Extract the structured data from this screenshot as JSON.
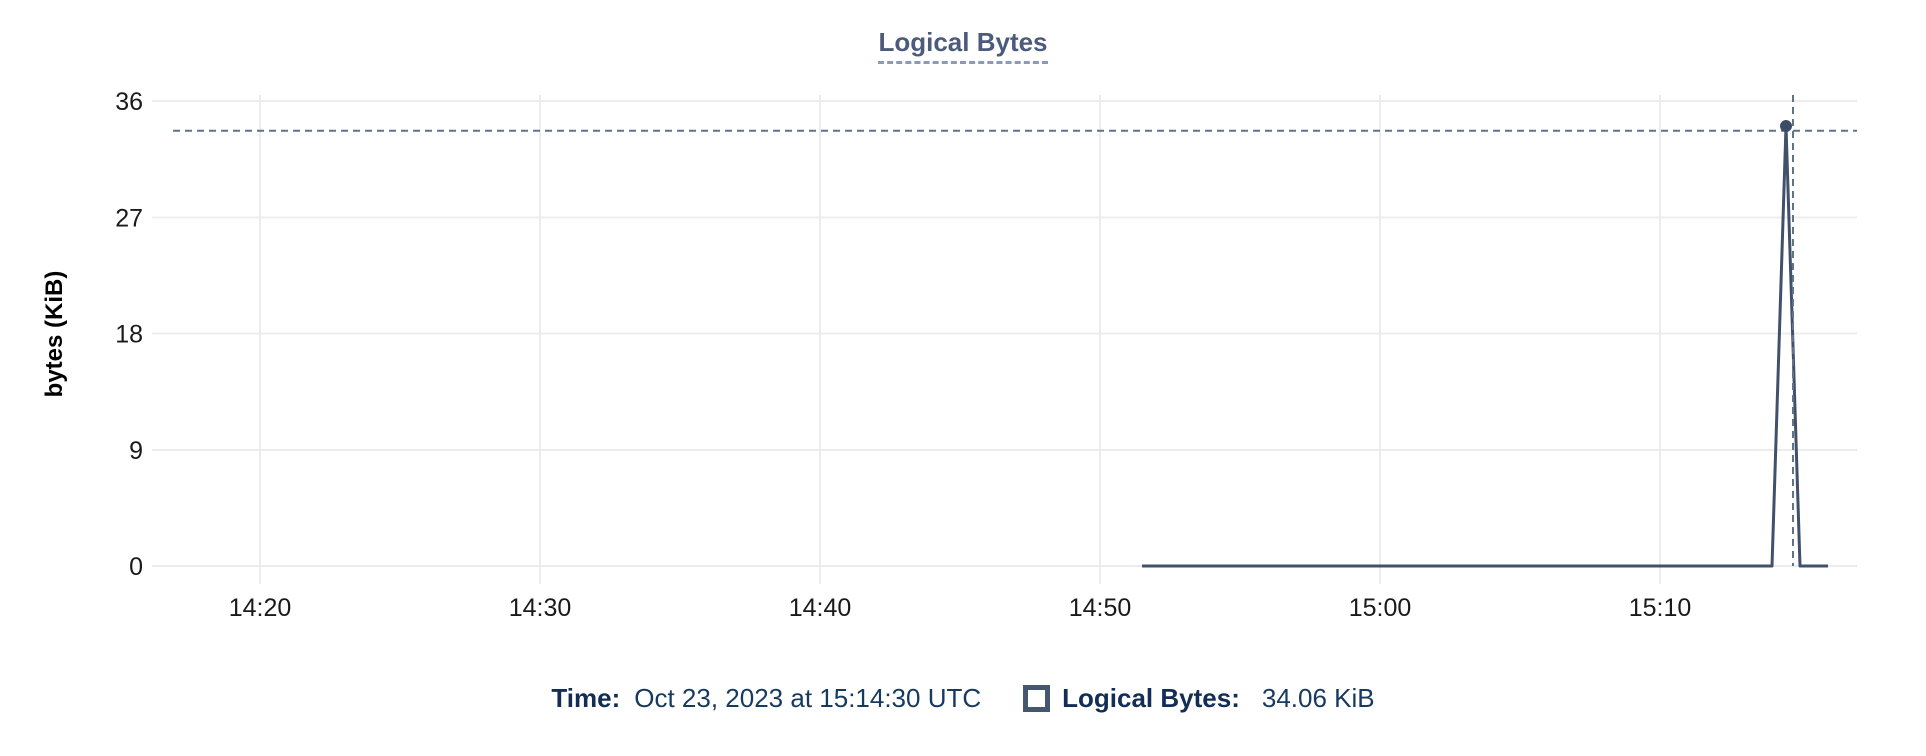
{
  "chart": {
    "title": "Logical Bytes"
  },
  "readout": {
    "time_label": "Time:",
    "time_value": "Oct 23, 2023 at 15:14:30 UTC",
    "series_label": "Logical Bytes:",
    "series_value": "34.06 KiB"
  },
  "colors": {
    "series_line": "#41506b",
    "marker_dot": "#3d4c66",
    "crosshair": "#5d7489",
    "gridline": "#ececec",
    "axis_text": "#1a1a1a",
    "axis_title_text": "#000000",
    "title_text": "#4c5b7c",
    "title_underline": "#8b99bb",
    "readout_label_text": "#122e56",
    "readout_value_text": "#173a60",
    "swatch_border": "#45566f"
  },
  "chart_data": {
    "type": "line",
    "title": "Logical Bytes",
    "xlabel": "",
    "ylabel": "bytes (KiB)",
    "ylim": [
      0,
      36
    ],
    "yticks": [
      0,
      9,
      18,
      27,
      36
    ],
    "x_unit": "minutes after 14:00 UTC",
    "xticks": [
      {
        "label": "14:20",
        "minutes": 20
      },
      {
        "label": "14:30",
        "minutes": 30
      },
      {
        "label": "14:40",
        "minutes": 40
      },
      {
        "label": "14:50",
        "minutes": 50
      },
      {
        "label": "15:00",
        "minutes": 60
      },
      {
        "label": "15:10",
        "minutes": 70
      }
    ],
    "grid": true,
    "legend_position": "bottom",
    "series": [
      {
        "name": "Logical Bytes",
        "unit": "KiB",
        "points": [
          [
            51.5,
            0
          ],
          [
            74.0,
            0
          ],
          [
            74.5,
            34.06
          ],
          [
            75.0,
            0
          ],
          [
            76.0,
            0
          ]
        ]
      }
    ],
    "hover": {
      "time": "Oct 23, 2023 at 15:14:30 UTC",
      "point": [
        74.5,
        34.06
      ],
      "crosshair_x_minutes": 74.75,
      "crosshair_y_kib": 33.7
    }
  }
}
